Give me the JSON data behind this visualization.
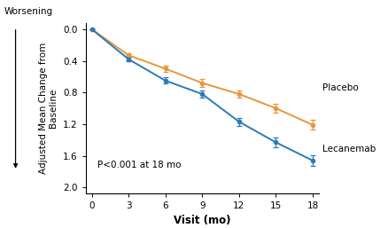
{
  "title": "",
  "xlabel": "Visit (mo)",
  "ylabel": "Adjusted Mean Change from\nBaseline",
  "worsening_label": "Worsening",
  "annotation": "P<0.001 at 18 mo",
  "x_visits": [
    0,
    3,
    6,
    9,
    12,
    15,
    18
  ],
  "lecanemab_y": [
    0.0,
    0.33,
    0.5,
    0.68,
    0.82,
    1.0,
    1.21
  ],
  "lecanemab_err": [
    0.0,
    0.03,
    0.04,
    0.05,
    0.05,
    0.06,
    0.06
  ],
  "lecanemab_color": "#E8963C",
  "lecanemab_label": "Lecanemab",
  "placebo_y": [
    0.0,
    0.38,
    0.65,
    0.82,
    1.17,
    1.43,
    1.66
  ],
  "placebo_err": [
    0.0,
    0.03,
    0.04,
    0.05,
    0.05,
    0.06,
    0.07
  ],
  "placebo_color": "#2B7BB9",
  "placebo_label": "Placebo",
  "xlim": [
    -0.5,
    18.5
  ],
  "ylim": [
    2.08,
    -0.08
  ],
  "yticks": [
    0.0,
    0.4,
    0.8,
    1.2,
    1.6,
    2.0
  ],
  "xticks": [
    0,
    3,
    6,
    9,
    12,
    15,
    18
  ],
  "background_color": "#FFFFFF"
}
